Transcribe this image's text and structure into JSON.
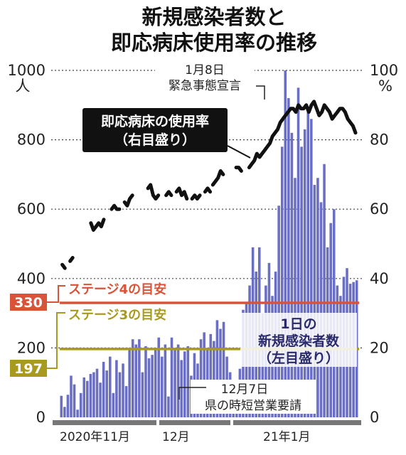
{
  "chart_data": {
    "type": "bar",
    "title": [
      "新規感染者数と",
      "即応病床使用率の推移"
    ],
    "left_axis": {
      "unit": "人",
      "ticks": [
        0,
        200,
        400,
        600,
        800,
        1000
      ],
      "ylim": [
        0,
        1000
      ]
    },
    "right_axis": {
      "unit": "%",
      "ticks": [
        0,
        20,
        40,
        60,
        80,
        100
      ],
      "ylim": [
        0,
        100
      ]
    },
    "x_labels": [
      "2020年11月",
      "12月",
      "21年1月"
    ],
    "series": [
      {
        "name": "1日の新規感染者数（左目盛り）",
        "label_lines": [
          "1日の",
          "新規感染者数",
          "（左目盛り）"
        ],
        "color": "#6b6fc4",
        "values": [
          62,
          30,
          65,
          120,
          95,
          22,
          70,
          115,
          105,
          125,
          130,
          140,
          100,
          160,
          135,
          175,
          70,
          165,
          130,
          155,
          90,
          200,
          225,
          210,
          225,
          130,
          205,
          170,
          180,
          195,
          230,
          175,
          210,
          60,
          230,
          195,
          210,
          165,
          190,
          205,
          120,
          185,
          155,
          225,
          245,
          195,
          240,
          220,
          280,
          255,
          275,
          175,
          130,
          90,
          70,
          140,
          310,
          330,
          380,
          490,
          420,
          490,
          300,
          380,
          445,
          350,
          420,
          610,
          780,
          1000,
          920,
          820,
          690,
          950,
          780,
          830,
          880,
          860,
          670,
          690,
          620,
          730,
          490,
          560,
          600,
          380,
          350,
          405,
          430,
          385,
          390,
          395
        ]
      },
      {
        "name": "即応病床使用率（右目盛り）",
        "label_lines": [
          "即応病床の使用率",
          "（右目盛り）"
        ],
        "color": "#111111",
        "segments": [
          [
            [
              1,
              44
            ],
            [
              2,
              43
            ]
          ],
          [
            [
              4,
              45
            ],
            [
              5,
              46
            ]
          ],
          [
            [
              12,
              56
            ],
            [
              13,
              54
            ],
            [
              14,
              55
            ],
            [
              15,
              56
            ],
            [
              16,
              55
            ],
            [
              17,
              57
            ]
          ],
          [
            [
              20,
              60
            ],
            [
              21,
              61
            ],
            [
              22,
              60
            ],
            [
              23,
              60
            ]
          ],
          [
            [
              25,
              62
            ],
            [
              26,
              61
            ],
            [
              27,
              63
            ],
            [
              28,
              64
            ]
          ],
          [
            [
              34,
              66
            ],
            [
              35,
              67
            ],
            [
              36,
              64
            ],
            [
              37,
              63
            ],
            [
              38,
              64
            ]
          ],
          [
            [
              41,
              64
            ],
            [
              42,
              65
            ],
            [
              43,
              64
            ]
          ],
          [
            [
              45,
              65
            ],
            [
              46,
              66
            ],
            [
              47,
              64
            ],
            [
              48,
              65
            ],
            [
              49,
              63
            ]
          ],
          [
            [
              51,
              63
            ],
            [
              52,
              64
            ],
            [
              53,
              63
            ],
            [
              54,
              64
            ]
          ],
          [
            [
              56,
              65
            ],
            [
              57,
              66
            ],
            [
              58,
              65
            ]
          ],
          [
            [
              59,
              67
            ],
            [
              60,
              68
            ],
            [
              61,
              69
            ],
            [
              62,
              71
            ],
            [
              63,
              70
            ]
          ],
          [
            [
              68,
              72
            ],
            [
              69,
              72
            ],
            [
              70,
              71
            ]
          ],
          [
            [
              73,
              72
            ],
            [
              74,
              73
            ],
            [
              75,
              74
            ],
            [
              76,
              76
            ],
            [
              77,
              75
            ],
            [
              78,
              76
            ],
            [
              79,
              77
            ],
            [
              80,
              78
            ],
            [
              81,
              79
            ],
            [
              82,
              81
            ],
            [
              83,
              82
            ],
            [
              84,
              83
            ],
            [
              85,
              85
            ],
            [
              86,
              86
            ],
            [
              87,
              87
            ],
            [
              88,
              88
            ],
            [
              89,
              89
            ],
            [
              90,
              89
            ],
            [
              91,
              88
            ],
            [
              92,
              90
            ],
            [
              93,
              89
            ],
            [
              94,
              89
            ],
            [
              95,
              90
            ],
            [
              96,
              88
            ],
            [
              97,
              90
            ],
            [
              98,
              91
            ],
            [
              99,
              89
            ],
            [
              100,
              87
            ],
            [
              101,
              88
            ],
            [
              102,
              90
            ],
            [
              103,
              89
            ],
            [
              104,
              88
            ],
            [
              105,
              86
            ],
            [
              106,
              87
            ],
            [
              107,
              88
            ],
            [
              108,
              89
            ],
            [
              109,
              89
            ],
            [
              110,
              88
            ],
            [
              111,
              86
            ],
            [
              112,
              85
            ],
            [
              113,
              84
            ],
            [
              114,
              82
            ]
          ]
        ]
      }
    ],
    "reference_lines": [
      {
        "value": 330,
        "label": "ステージ4の目安",
        "value_label": "330",
        "color": "#d9533a"
      },
      {
        "value": 197,
        "label": "ステージ3の目安",
        "value_label": "197",
        "color": "#a89a1e"
      }
    ],
    "annotations": [
      {
        "lines": [
          "1月8日",
          "緊急事態宣言"
        ],
        "ref": "bar_70"
      },
      {
        "lines": [
          "12月7日",
          "県の時短営業要請"
        ],
        "ref": "bar_33"
      }
    ],
    "grid": "dotted horizontal"
  }
}
